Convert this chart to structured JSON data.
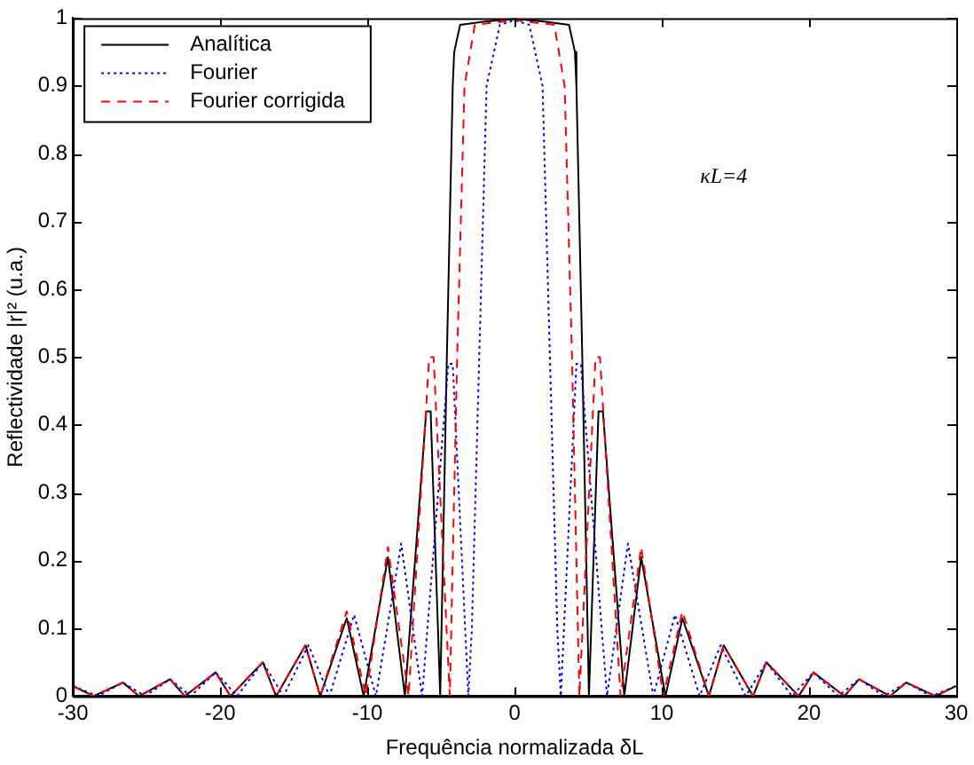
{
  "chart_data": {
    "type": "line",
    "xlabel": "Frequência normalizada δL",
    "ylabel": "Reflectividade |r|² (u.a.)",
    "annotations": [
      "κL=4"
    ],
    "xlim": [
      -30,
      30
    ],
    "xticks": [
      -30,
      -20,
      -10,
      0,
      10,
      20,
      30
    ],
    "ylim": [
      0,
      1
    ],
    "yticks": [
      0,
      0.1,
      0.2,
      0.3,
      0.4,
      0.5,
      0.6,
      0.7,
      0.8,
      0.9,
      1
    ],
    "grid": false,
    "legend": "top left",
    "marker": "none",
    "series": [
      {
        "name": "Analítica",
        "color": "#000000",
        "line_style": "solid",
        "x": [
          -30,
          -28.6,
          -26.6,
          -25.5,
          -23.4,
          -22.4,
          -20.3,
          -19.3,
          -17.1,
          -16.2,
          -14.2,
          -13.2,
          -11.4,
          -10.25,
          -8.6,
          -7.45,
          -6.0,
          -5.7,
          -5.05,
          -4.6,
          -4.2,
          -4.1,
          -3.7,
          -2,
          0,
          2,
          3.7,
          4.1,
          4.2,
          4.6,
          5.05,
          5.7,
          6.0,
          7.45,
          8.6,
          10.25,
          11.4,
          13.2,
          14.2,
          16.2,
          17.1,
          19.3,
          20.3,
          22.4,
          23.4,
          25.5,
          26.6,
          28.6,
          30
        ],
        "values": [
          0.015,
          0,
          0.02,
          0,
          0.025,
          0,
          0.035,
          0,
          0.05,
          0,
          0.075,
          0,
          0.115,
          0,
          0.205,
          0,
          0.42,
          0.42,
          0,
          0.5,
          0.9,
          0.95,
          0.99,
          0.995,
          0.999,
          0.995,
          0.99,
          0.95,
          0.9,
          0.5,
          0,
          0.42,
          0.42,
          0,
          0.205,
          0,
          0.115,
          0,
          0.075,
          0,
          0.05,
          0,
          0.035,
          0,
          0.025,
          0,
          0.02,
          0,
          0.015
        ]
      },
      {
        "name": "Fourier",
        "color": "#0000ff",
        "line_style": "dotted",
        "x": [
          -30,
          -28.3,
          -26.6,
          -25.1,
          -23.4,
          -22,
          -20.3,
          -18.85,
          -17.1,
          -15.7,
          -14,
          -12.57,
          -10.9,
          -9.42,
          -7.7,
          -6.28,
          -4.5,
          -4.2,
          -3.14,
          -2.9,
          -2.4,
          -1.9,
          -1,
          0,
          1,
          1.9,
          2.4,
          2.9,
          3.14,
          4.2,
          4.5,
          6.28,
          7.7,
          9.42,
          10.9,
          12.57,
          14,
          15.7,
          17.1,
          18.85,
          20.3,
          22,
          23.4,
          25.1,
          26.6,
          28.3,
          30
        ],
        "values": [
          0.015,
          0,
          0.02,
          0,
          0.025,
          0,
          0.035,
          0,
          0.05,
          0,
          0.075,
          0,
          0.12,
          0,
          0.225,
          0,
          0.49,
          0.49,
          0,
          0.1,
          0.5,
          0.9,
          0.99,
          0.997,
          0.99,
          0.9,
          0.5,
          0.1,
          0,
          0.49,
          0.49,
          0,
          0.225,
          0,
          0.12,
          0,
          0.075,
          0,
          0.05,
          0,
          0.035,
          0,
          0.025,
          0,
          0.02,
          0,
          0.015
        ]
      },
      {
        "name": "Fourier corrigida",
        "color": "#ff0000",
        "line_style": "dashed",
        "x": [
          -30,
          -28.6,
          -26.6,
          -25.5,
          -23.4,
          -22.4,
          -20.3,
          -19.3,
          -17.1,
          -16.2,
          -14.2,
          -13.2,
          -11.4,
          -10.1,
          -8.6,
          -7.2,
          -5.8,
          -5.5,
          -4.4,
          -3.9,
          -3.4,
          -2.7,
          0,
          2.7,
          3.4,
          3.9,
          4.4,
          5.5,
          5.8,
          7.2,
          8.6,
          10.1,
          11.4,
          13.2,
          14.2,
          16.2,
          17.1,
          19.3,
          20.3,
          22.4,
          23.4,
          25.5,
          26.6,
          28.6,
          30
        ],
        "values": [
          0.015,
          0,
          0.02,
          0,
          0.025,
          0,
          0.035,
          0,
          0.05,
          0,
          0.075,
          0,
          0.125,
          0,
          0.22,
          0,
          0.5,
          0.5,
          0,
          0.5,
          0.9,
          0.99,
          0.997,
          0.99,
          0.9,
          0.5,
          0,
          0.5,
          0.5,
          0,
          0.22,
          0,
          0.125,
          0,
          0.075,
          0,
          0.05,
          0,
          0.035,
          0,
          0.025,
          0,
          0.02,
          0,
          0.015
        ]
      }
    ]
  }
}
